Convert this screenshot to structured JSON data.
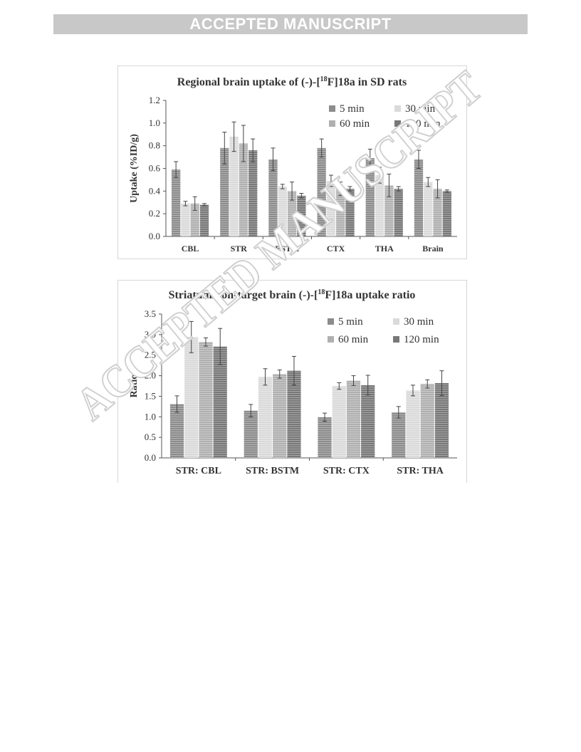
{
  "banner": {
    "text": "ACCEPTED MANUSCRIPT"
  },
  "watermark": {
    "text": "ACCEPTED MANUSCRIPT"
  },
  "colors": {
    "series": [
      "#8c8c8c",
      "#dadada",
      "#b0b0b0",
      "#787878"
    ],
    "axis": "#555555",
    "text": "#333333"
  },
  "chart_data": [
    {
      "type": "bar",
      "title_pre": "Regional brain uptake of (-)-[",
      "title_sup": "18",
      "title_post": "F]18a in SD rats",
      "xlabel": "",
      "ylabel": "Uptake (%ID/g)",
      "ylim": [
        0,
        1.2
      ],
      "yticks": [
        "0.0",
        "0.2",
        "0.4",
        "0.6",
        "0.8",
        "1.0",
        "1.2"
      ],
      "ytick_values": [
        0,
        0.2,
        0.4,
        0.6,
        0.8,
        1.0,
        1.2
      ],
      "categories": [
        "CBL",
        "STR",
        "BSTM",
        "CTX",
        "THA",
        "Brain"
      ],
      "series": [
        {
          "name": "5 min",
          "values": [
            0.59,
            0.78,
            0.68,
            0.78,
            0.69,
            0.68
          ],
          "errors": [
            0.07,
            0.14,
            0.1,
            0.08,
            0.08,
            0.08
          ]
        },
        {
          "name": "30 min",
          "values": [
            0.29,
            0.88,
            0.44,
            0.49,
            0.54,
            0.48
          ],
          "errors": [
            0.02,
            0.13,
            0.02,
            0.05,
            0.07,
            0.04
          ]
        },
        {
          "name": "60 min",
          "values": [
            0.29,
            0.82,
            0.4,
            0.42,
            0.45,
            0.42
          ],
          "errors": [
            0.06,
            0.16,
            0.08,
            0.06,
            0.1,
            0.08
          ]
        },
        {
          "name": "120 min",
          "values": [
            0.28,
            0.76,
            0.36,
            0.42,
            0.42,
            0.4
          ],
          "errors": [
            0.01,
            0.1,
            0.02,
            0.02,
            0.02,
            0.01
          ]
        }
      ],
      "legend": "top-right",
      "grid": false
    },
    {
      "type": "bar",
      "title_pre": "Striatum/non-target brain (-)-[",
      "title_sup": "18",
      "title_post": "F]18a uptake ratio",
      "xlabel": "",
      "ylabel": "Ratio",
      "ylim": [
        0,
        3.5
      ],
      "yticks": [
        "0.0",
        "0.5",
        "1.0",
        "1.5",
        "2.0",
        "2.5",
        "3.0",
        "3.5"
      ],
      "ytick_values": [
        0,
        0.5,
        1.0,
        1.5,
        2.0,
        2.5,
        3.0,
        3.5
      ],
      "categories": [
        "STR: CBL",
        "STR: BSTM",
        "STR: CTX",
        "STR: THA"
      ],
      "series": [
        {
          "name": "5 min",
          "values": [
            1.31,
            1.15,
            0.99,
            1.11
          ],
          "errors": [
            0.2,
            0.15,
            0.1,
            0.14
          ]
        },
        {
          "name": "30 min",
          "values": [
            2.94,
            1.97,
            1.75,
            1.64
          ],
          "errors": [
            0.38,
            0.2,
            0.08,
            0.13
          ]
        },
        {
          "name": "60 min",
          "values": [
            2.82,
            2.04,
            1.88,
            1.8
          ],
          "errors": [
            0.1,
            0.1,
            0.12,
            0.1
          ]
        },
        {
          "name": "120 min",
          "values": [
            2.71,
            2.12,
            1.77,
            1.82
          ],
          "errors": [
            0.44,
            0.35,
            0.24,
            0.3
          ]
        }
      ],
      "legend": "top-right",
      "grid": false
    }
  ]
}
